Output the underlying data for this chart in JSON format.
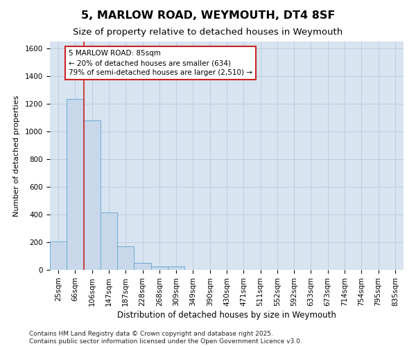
{
  "title": "5, MARLOW ROAD, WEYMOUTH, DT4 8SF",
  "subtitle": "Size of property relative to detached houses in Weymouth",
  "xlabel": "Distribution of detached houses by size in Weymouth",
  "ylabel": "Number of detached properties",
  "categories": [
    "25sqm",
    "66sqm",
    "106sqm",
    "147sqm",
    "187sqm",
    "228sqm",
    "268sqm",
    "309sqm",
    "349sqm",
    "390sqm",
    "430sqm",
    "471sqm",
    "511sqm",
    "552sqm",
    "592sqm",
    "633sqm",
    "673sqm",
    "714sqm",
    "754sqm",
    "795sqm",
    "835sqm"
  ],
  "values": [
    205,
    1235,
    1080,
    415,
    170,
    50,
    25,
    25,
    0,
    0,
    0,
    0,
    0,
    0,
    0,
    0,
    0,
    0,
    0,
    0,
    0
  ],
  "bar_color": "#c8d8ea",
  "bar_edge_color": "#6aaad4",
  "grid_color": "#b8c8dc",
  "background_color": "#d8e4f0",
  "annotation_line1": "5 MARLOW ROAD: 85sqm",
  "annotation_line2": "← 20% of detached houses are smaller (634)",
  "annotation_line3": "79% of semi-detached houses are larger (2,510) →",
  "annotation_box_color": "#ffffff",
  "annotation_box_edge_color": "#cc2222",
  "vline_x": 1.5,
  "vline_color": "#cc2222",
  "ylim": [
    0,
    1650
  ],
  "yticks": [
    0,
    200,
    400,
    600,
    800,
    1000,
    1200,
    1400,
    1600
  ],
  "footer": "Contains HM Land Registry data © Crown copyright and database right 2025.\nContains public sector information licensed under the Open Government Licence v3.0.",
  "title_fontsize": 11.5,
  "subtitle_fontsize": 9.5,
  "xlabel_fontsize": 8.5,
  "ylabel_fontsize": 8,
  "tick_fontsize": 7.5,
  "annotation_fontsize": 7.5,
  "footer_fontsize": 6.5
}
